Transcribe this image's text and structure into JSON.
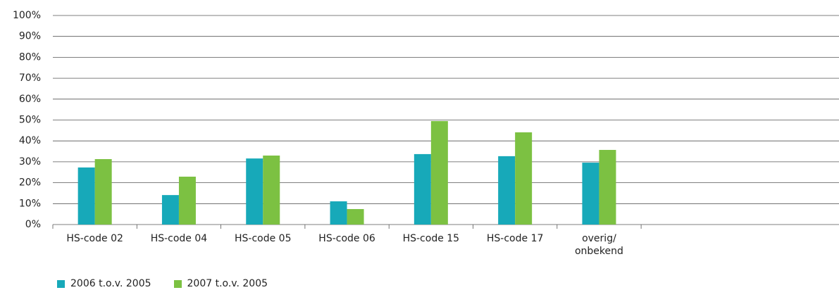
{
  "chart_data": {
    "type": "bar",
    "categories": [
      "HS-code 02",
      "HS-code 04",
      "HS-code 05",
      "HS-code 06",
      "HS-code 15",
      "HS-code 17",
      "overig/\nonbekend"
    ],
    "series": [
      {
        "name": "2006 t.o.v. 2005",
        "color": "#17a9b9",
        "values": [
          27.3,
          14.1,
          31.6,
          11.1,
          33.7,
          32.7,
          29.6
        ]
      },
      {
        "name": "2007 t.o.v. 2005",
        "color": "#7cc142",
        "values": [
          31.3,
          22.9,
          33.0,
          7.4,
          49.5,
          44.1,
          35.7
        ]
      }
    ],
    "ylim": [
      0,
      100
    ],
    "yticks": [
      {
        "value": 0,
        "label": "0%"
      },
      {
        "value": 10,
        "label": "10%"
      },
      {
        "value": 20,
        "label": "20%"
      },
      {
        "value": 30,
        "label": "30%"
      },
      {
        "value": 40,
        "label": "40%"
      },
      {
        "value": 50,
        "label": "50%"
      },
      {
        "value": 60,
        "label": "60%"
      },
      {
        "value": 70,
        "label": "70%"
      },
      {
        "value": 80,
        "label": "80%"
      },
      {
        "value": 90,
        "label": "90%"
      },
      {
        "value": 100,
        "label": "100%"
      }
    ],
    "grid": true
  }
}
